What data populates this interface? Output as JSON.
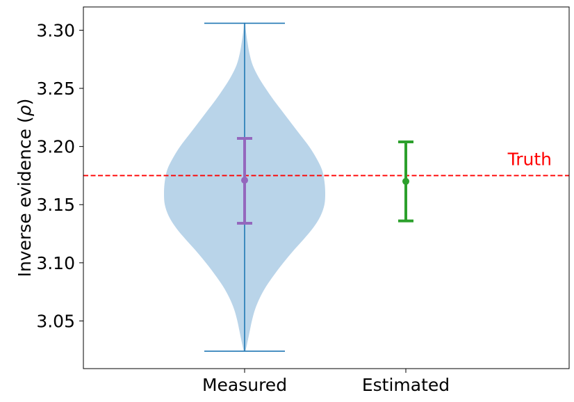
{
  "chart_data": {
    "type": "violin",
    "title": "",
    "xlabel": "",
    "ylabel": "Inverse evidence (ρ)",
    "ylabel_prefix": "Inverse evidence (",
    "ylabel_symbol": "ρ",
    "ylabel_suffix": ")",
    "ylim": [
      3.009,
      3.32
    ],
    "yticks": [
      3.05,
      3.1,
      3.15,
      3.2,
      3.25,
      3.3
    ],
    "ytick_labels": [
      "3.05",
      "3.10",
      "3.15",
      "3.20",
      "3.25",
      "3.30"
    ],
    "categories": [
      "Measured",
      "Estimated"
    ],
    "grid": false,
    "violin": {
      "category": "Measured",
      "min": 3.024,
      "max": 3.306,
      "profile_y": [
        3.024,
        3.03,
        3.04,
        3.05,
        3.06,
        3.07,
        3.08,
        3.09,
        3.1,
        3.11,
        3.12,
        3.13,
        3.14,
        3.15,
        3.16,
        3.17,
        3.18,
        3.19,
        3.2,
        3.21,
        3.22,
        3.23,
        3.24,
        3.25,
        3.26,
        3.27,
        3.28,
        3.29,
        3.3,
        3.306
      ],
      "profile_w": [
        0.01,
        0.03,
        0.06,
        0.09,
        0.13,
        0.19,
        0.27,
        0.37,
        0.48,
        0.6,
        0.73,
        0.85,
        0.94,
        0.99,
        1.0,
        0.99,
        0.96,
        0.89,
        0.8,
        0.69,
        0.58,
        0.47,
        0.36,
        0.26,
        0.17,
        0.1,
        0.06,
        0.035,
        0.015,
        0.008
      ],
      "body_color": "#b9d4e9",
      "line_color": "#1f77b4"
    },
    "error_bars": [
      {
        "category": "Measured",
        "center": 3.171,
        "lower": 3.134,
        "upper": 3.207,
        "color": "#9467bd"
      },
      {
        "category": "Estimated",
        "center": 3.17,
        "lower": 3.136,
        "upper": 3.204,
        "color": "#2ca02c"
      }
    ],
    "reference_line": {
      "value": 3.175,
      "label": "Truth",
      "color": "#ff0000",
      "style": "dashed"
    }
  }
}
